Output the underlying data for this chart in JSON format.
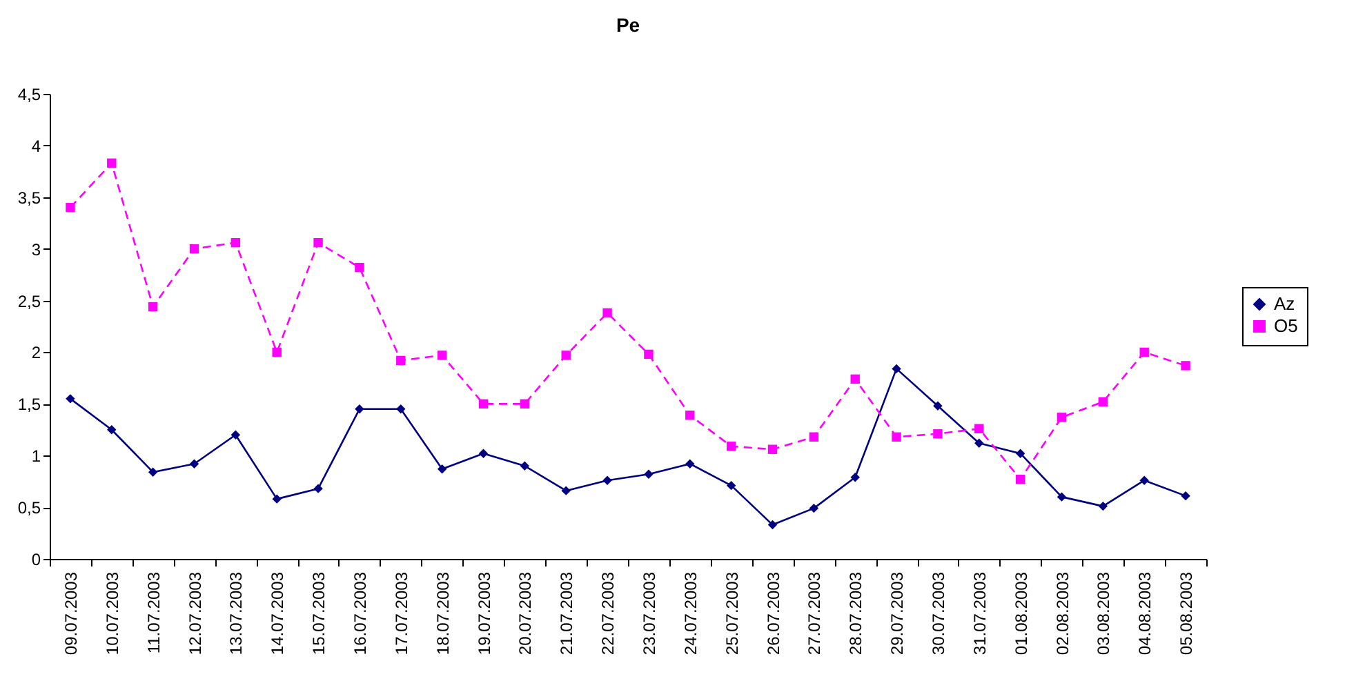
{
  "chart_data": {
    "type": "line",
    "title": "Pe",
    "categories": [
      "09.07.2003",
      "10.07.2003",
      "11.07.2003",
      "12.07.2003",
      "13.07.2003",
      "14.07.2003",
      "15.07.2003",
      "16.07.2003",
      "17.07.2003",
      "18.07.2003",
      "19.07.2003",
      "20.07.2003",
      "21.07.2003",
      "22.07.2003",
      "23.07.2003",
      "24.07.2003",
      "25.07.2003",
      "26.07.2003",
      "27.07.2003",
      "28.07.2003",
      "29.07.2003",
      "30.07.2003",
      "31.07.2003",
      "01.08.2003",
      "02.08.2003",
      "03.08.2003",
      "04.08.2003",
      "05.08.2003"
    ],
    "series": [
      {
        "name": "Az",
        "color": "#000080",
        "marker": "diamond",
        "line_style": "solid",
        "values": [
          1.55,
          1.25,
          0.84,
          0.92,
          1.2,
          0.58,
          0.68,
          1.45,
          1.45,
          0.87,
          1.02,
          0.9,
          0.66,
          0.76,
          0.82,
          0.92,
          0.71,
          0.33,
          0.49,
          0.79,
          1.84,
          1.48,
          1.12,
          1.02,
          0.6,
          0.51,
          0.76,
          0.61
        ]
      },
      {
        "name": "O5",
        "color": "#ff00ff",
        "marker": "square",
        "line_style": "dashed",
        "values": [
          3.4,
          3.83,
          2.44,
          3.0,
          3.06,
          2.0,
          3.06,
          2.82,
          1.92,
          1.97,
          1.5,
          1.5,
          1.97,
          2.38,
          1.98,
          1.39,
          1.09,
          1.06,
          1.18,
          1.74,
          1.18,
          1.21,
          1.26,
          0.77,
          1.37,
          1.52,
          2.0,
          1.87
        ]
      }
    ],
    "ylim": [
      0,
      4.5
    ],
    "yticks": [
      0,
      {
        "value": 0.5,
        "label": "0,5"
      },
      1,
      {
        "value": 1.5,
        "label": "1,5"
      },
      2,
      {
        "value": 2.5,
        "label": "2,5"
      },
      3,
      {
        "value": 3.5,
        "label": "3,5"
      },
      4,
      {
        "value": 4.5,
        "label": "4,5"
      }
    ],
    "grid": false,
    "legend": "right"
  }
}
